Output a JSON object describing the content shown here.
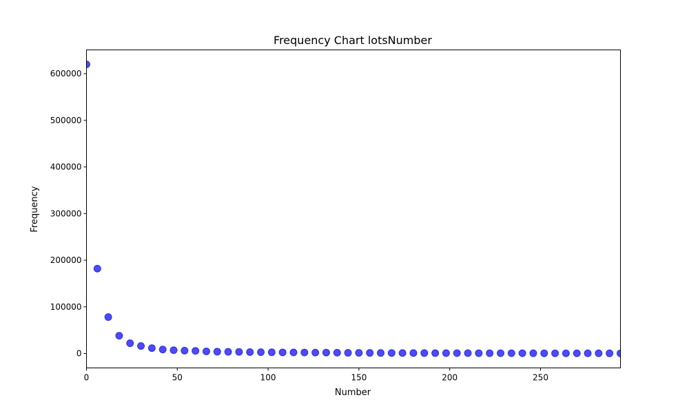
{
  "chart_data": {
    "type": "scatter",
    "title": "Frequency Chart lotsNumber",
    "xlabel": "Number",
    "ylabel": "Frequency",
    "xlim": [
      0,
      294
    ],
    "ylim": [
      -31000,
      651000
    ],
    "x_ticks": [
      0,
      50,
      100,
      150,
      200,
      250
    ],
    "x_tick_labels": [
      "0",
      "50",
      "100",
      "150",
      "200",
      "250"
    ],
    "y_ticks": [
      0,
      100000,
      200000,
      300000,
      400000,
      500000,
      600000
    ],
    "y_tick_labels": [
      "0",
      "100000",
      "200000",
      "300000",
      "400000",
      "500000",
      "600000"
    ],
    "grid": false,
    "marker_color": "#0000ee",
    "marker_opacity": 0.7,
    "series": [
      {
        "x": [
          0,
          6,
          12,
          18,
          24,
          30,
          36,
          42,
          48,
          54,
          60,
          66,
          72,
          78,
          84,
          90,
          96,
          102,
          108,
          114,
          120,
          126,
          132,
          138,
          144,
          150,
          156,
          162,
          168,
          174,
          180,
          186,
          192,
          198,
          204,
          210,
          216,
          222,
          228,
          234,
          240,
          246,
          252,
          258,
          264,
          270,
          276,
          282,
          288,
          294
        ],
        "y": [
          620000,
          182000,
          78000,
          38000,
          22000,
          16000,
          11500,
          8500,
          7000,
          6000,
          5500,
          4500,
          3800,
          3500,
          3300,
          3000,
          2800,
          2500,
          2300,
          2200,
          2000,
          1900,
          1800,
          1600,
          1400,
          1300,
          1200,
          1100,
          1000,
          950,
          900,
          850,
          800,
          760,
          720,
          680,
          640,
          600,
          560,
          530,
          500,
          470,
          440,
          410,
          380,
          350,
          320,
          300,
          280,
          260
        ]
      }
    ]
  }
}
